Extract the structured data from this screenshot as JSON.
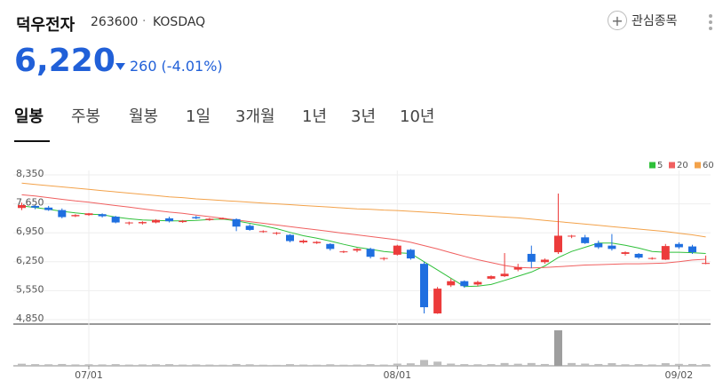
{
  "header": {
    "name": "덕우전자",
    "code": "263600",
    "separator": "·",
    "market": "KOSDAQ",
    "watchlist": "관심종목",
    "price": "6,220",
    "change": "260",
    "change_pct": "(-4.01%)",
    "tabs": [
      "일봉",
      "주봉",
      "월봉",
      "1일",
      "3개월",
      "1년",
      "3년",
      "10년"
    ]
  },
  "chart_data": {
    "type": "candlestick",
    "categories": [
      null,
      null,
      null,
      null,
      null,
      "07/01",
      null,
      null,
      null,
      null,
      null,
      null,
      null,
      null,
      null,
      null,
      null,
      null,
      null,
      null,
      null,
      null,
      null,
      null,
      null,
      null,
      null,
      null,
      "08/01",
      null,
      null,
      null,
      null,
      null,
      null,
      null,
      null,
      null,
      null,
      null,
      null,
      null,
      null,
      null,
      null,
      null,
      null,
      null,
      null,
      "09/02",
      null,
      null
    ],
    "open": [
      7550,
      7600,
      7560,
      7500,
      7350,
      7380,
      7400,
      7340,
      7180,
      7180,
      7200,
      7300,
      7210,
      7330,
      7260,
      7290,
      7280,
      7120,
      6970,
      6940,
      6900,
      6720,
      6700,
      6680,
      6480,
      6520,
      6560,
      6320,
      6420,
      6540,
      6200,
      5000,
      5680,
      5780,
      5700,
      5840,
      5900,
      6060,
      6440,
      6240,
      6480,
      6860,
      6840,
      6700,
      6640,
      6440,
      6440,
      6320,
      6300,
      6680,
      6620,
      6200
    ],
    "high": [
      7680,
      7620,
      7600,
      7540,
      7400,
      7430,
      7420,
      7360,
      7220,
      7230,
      7280,
      7340,
      7260,
      7360,
      7310,
      7320,
      7300,
      7160,
      7010,
      6970,
      6920,
      6790,
      6750,
      6700,
      6520,
      6580,
      6590,
      6360,
      6660,
      6560,
      6250,
      5640,
      5840,
      5800,
      5790,
      5920,
      6460,
      6200,
      6640,
      6330,
      7900,
      6900,
      6900,
      6760,
      6920,
      6500,
      6460,
      6360,
      6680,
      6720,
      6660,
      6400
    ],
    "low": [
      7500,
      7520,
      7480,
      7300,
      7330,
      7360,
      7320,
      7180,
      7140,
      7150,
      7180,
      7200,
      7190,
      7280,
      7240,
      7270,
      6990,
      7000,
      6950,
      6900,
      6720,
      6690,
      6680,
      6520,
      6460,
      6480,
      6330,
      6280,
      6400,
      6300,
      5000,
      4990,
      5640,
      5620,
      5660,
      5820,
      5880,
      6020,
      6100,
      6200,
      6440,
      6820,
      6680,
      6560,
      6520,
      6400,
      6320,
      6300,
      6290,
      6560,
      6440,
      6190
    ],
    "close": [
      7620,
      7560,
      7500,
      7330,
      7380,
      7420,
      7350,
      7200,
      7200,
      7210,
      7260,
      7230,
      7240,
      7300,
      7290,
      7300,
      7100,
      7020,
      6990,
      6950,
      6750,
      6760,
      6730,
      6560,
      6500,
      6560,
      6370,
      6340,
      6640,
      6330,
      5150,
      5600,
      5780,
      5660,
      5760,
      5900,
      5960,
      6120,
      6250,
      6300,
      6880,
      6880,
      6700,
      6600,
      6560,
      6480,
      6350,
      6340,
      6630,
      6600,
      6480,
      6220
    ],
    "up_color": "#ec3b3b",
    "down_color": "#1f6fe0",
    "series": [
      {
        "name": "5",
        "color": "#2fc03a",
        "values": [
          7600,
          7560,
          7520,
          7470,
          7430,
          7400,
          7390,
          7330,
          7290,
          7260,
          7250,
          7240,
          7240,
          7250,
          7270,
          7280,
          7240,
          7180,
          7120,
          7050,
          6960,
          6880,
          6820,
          6750,
          6670,
          6600,
          6550,
          6500,
          6470,
          6450,
          6250,
          6050,
          5850,
          5650,
          5660,
          5700,
          5800,
          5900,
          6000,
          6150,
          6350,
          6500,
          6600,
          6700,
          6700,
          6650,
          6580,
          6500,
          6480,
          6480,
          6470,
          6450
        ]
      },
      {
        "name": "20",
        "color": "#f06060",
        "values": [
          7870,
          7840,
          7800,
          7760,
          7720,
          7690,
          7650,
          7610,
          7570,
          7530,
          7490,
          7450,
          7420,
          7380,
          7340,
          7300,
          7260,
          7220,
          7180,
          7140,
          7100,
          7060,
          7020,
          6980,
          6940,
          6900,
          6860,
          6820,
          6780,
          6720,
          6640,
          6560,
          6470,
          6380,
          6300,
          6230,
          6160,
          6110,
          6100,
          6110,
          6130,
          6150,
          6170,
          6180,
          6190,
          6200,
          6200,
          6210,
          6220,
          6250,
          6290,
          6310
        ]
      },
      {
        "name": "60",
        "color": "#f3a24a",
        "values": [
          8150,
          8120,
          8090,
          8060,
          8030,
          8000,
          7970,
          7940,
          7910,
          7880,
          7850,
          7820,
          7800,
          7770,
          7750,
          7730,
          7710,
          7690,
          7670,
          7650,
          7630,
          7610,
          7590,
          7570,
          7550,
          7530,
          7520,
          7500,
          7490,
          7470,
          7450,
          7430,
          7410,
          7390,
          7370,
          7350,
          7330,
          7310,
          7280,
          7250,
          7220,
          7190,
          7160,
          7130,
          7100,
          7070,
          7040,
          7010,
          6980,
          6940,
          6900,
          6850
        ]
      }
    ],
    "volume": [
      150000,
      120000,
      110000,
      130000,
      100000,
      110000,
      100000,
      120000,
      90000,
      100000,
      110000,
      120000,
      90000,
      100000,
      90000,
      80000,
      130000,
      110000,
      80000,
      70000,
      120000,
      90000,
      80000,
      110000,
      80000,
      90000,
      120000,
      90000,
      160000,
      180000,
      420000,
      300000,
      160000,
      120000,
      110000,
      120000,
      200000,
      150000,
      200000,
      130000,
      2550000,
      200000,
      160000,
      130000,
      190000,
      110000,
      120000,
      100000,
      190000,
      140000,
      130000,
      120000
    ],
    "volume_color": "#bdbdbd",
    "volume_highlight": "#9e9e9e",
    "y2lim": [
      0,
      3000000
    ],
    "ylim": [
      4850,
      8350
    ],
    "yticks": [
      {
        "value": 4850,
        "label": "4,850"
      },
      {
        "value": 5550,
        "label": "5,550"
      },
      {
        "value": 6250,
        "label": "6,250"
      },
      {
        "value": 6950,
        "label": "6,950"
      },
      {
        "value": 7650,
        "label": "7,650"
      },
      {
        "value": 8350,
        "label": "8,350"
      }
    ],
    "grid": true,
    "legend": "top-right"
  }
}
